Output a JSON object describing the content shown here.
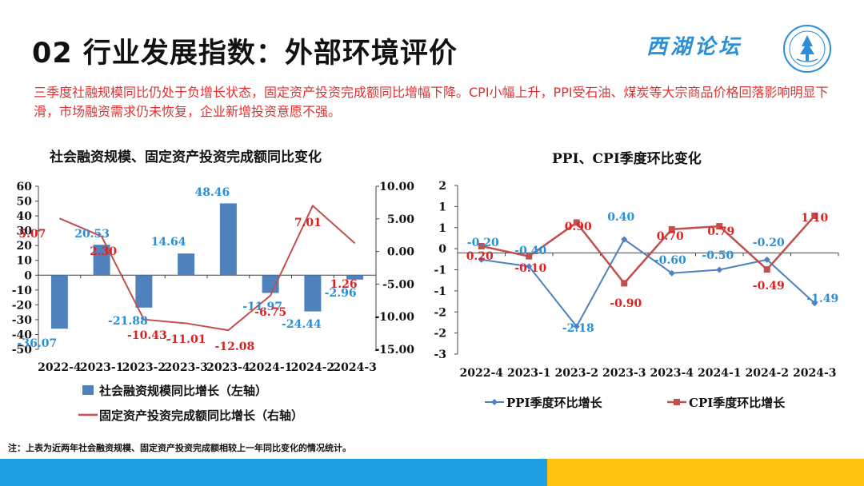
{
  "header": {
    "title": "02 行业发展指数：外部环境评价",
    "logo_text": "西湖论坛",
    "subtitle": "三季度社融规模同比仍处于负增长状态，固定资产投资完成额同比增幅下降。CPI小幅上升，PPI受石油、煤炭等大宗商品价格回落影响明显下滑，市场融资需求仍未恢复，企业新增投资意愿不强。"
  },
  "note": "注：上表为近两年社会融资规模、固定资产投资完成额相较上一年同比变化的情况统计。",
  "colors": {
    "blue_bar": "#4f81bd",
    "red_line": "#c0504d",
    "blue_line": "#4f81bd",
    "blue_label": "#2a8fd6",
    "red_label": "#e02020",
    "band_blue": "#1f9ee2",
    "band_yellow": "#ffc20e"
  },
  "chart_data": [
    {
      "type": "bar+line",
      "title": "社会融资规模、固定资产投资完成额同比变化",
      "categories": [
        "2022-4",
        "2023-1",
        "2023-2",
        "2023-3",
        "2023-4",
        "2024-1",
        "2024-2",
        "2024-3"
      ],
      "series": [
        {
          "name": "社会融资规模同比增长（左轴）",
          "type": "bar",
          "axis": "left",
          "values": [
            -36.07,
            20.53,
            -21.88,
            14.64,
            48.46,
            -11.97,
            -24.44,
            -2.96
          ],
          "labels": [
            "-36.07",
            "20.53",
            "-21.88",
            "14.64",
            "48.46",
            "-11.97",
            "-24.44",
            "-2.96"
          ]
        },
        {
          "name": "固定资产投资完成额同比增长（右轴）",
          "type": "line",
          "axis": "right",
          "values": [
            5.07,
            2.3,
            -10.43,
            -11.01,
            -12.08,
            -6.75,
            7.01,
            1.26
          ],
          "labels": [
            "5.07",
            "2.30",
            "-10.43",
            "-11.01",
            "-12.08",
            "-6.75",
            "7.01",
            "1.26"
          ]
        }
      ],
      "y_left": {
        "min": -50,
        "max": 60,
        "ticks": [
          "60",
          "50",
          "40",
          "30",
          "20",
          "10",
          "0",
          "-10",
          "-20",
          "-30",
          "-40",
          "-50"
        ]
      },
      "y_right": {
        "min": -15,
        "max": 10,
        "ticks": [
          "10.00",
          "5.00",
          "0.00",
          "-5.00",
          "-10.00",
          "-15.00"
        ]
      },
      "legend": "bottom"
    },
    {
      "type": "line",
      "title": "PPI、CPI季度环比变化",
      "categories": [
        "2022-4",
        "2023-1",
        "2023-2",
        "2023-3",
        "2023-4",
        "2024-1",
        "2024-2",
        "2024-3"
      ],
      "series": [
        {
          "name": "PPI季度环比增长",
          "marker": "diamond",
          "values": [
            -0.2,
            -0.4,
            -2.18,
            0.4,
            -0.6,
            -0.5,
            -0.2,
            -1.49
          ],
          "labels": [
            "-0.20",
            "-0.40",
            "-2.18",
            "0.40",
            "-0.60",
            "-0.50",
            "-0.20",
            "-1.49"
          ]
        },
        {
          "name": "CPI季度环比增长",
          "marker": "square",
          "values": [
            0.2,
            -0.1,
            0.9,
            -0.9,
            0.7,
            0.79,
            -0.49,
            1.1
          ],
          "labels": [
            "0.20",
            "-0.10",
            "0.90",
            "-0.90",
            "0.70",
            "0.79",
            "-0.49",
            "1.10"
          ]
        }
      ],
      "y": {
        "min": -3,
        "max": 2,
        "ticks": [
          "2",
          "1",
          "1",
          "0",
          "-1",
          "-1",
          "-2",
          "-2",
          "-3"
        ]
      },
      "legend": "bottom"
    }
  ]
}
